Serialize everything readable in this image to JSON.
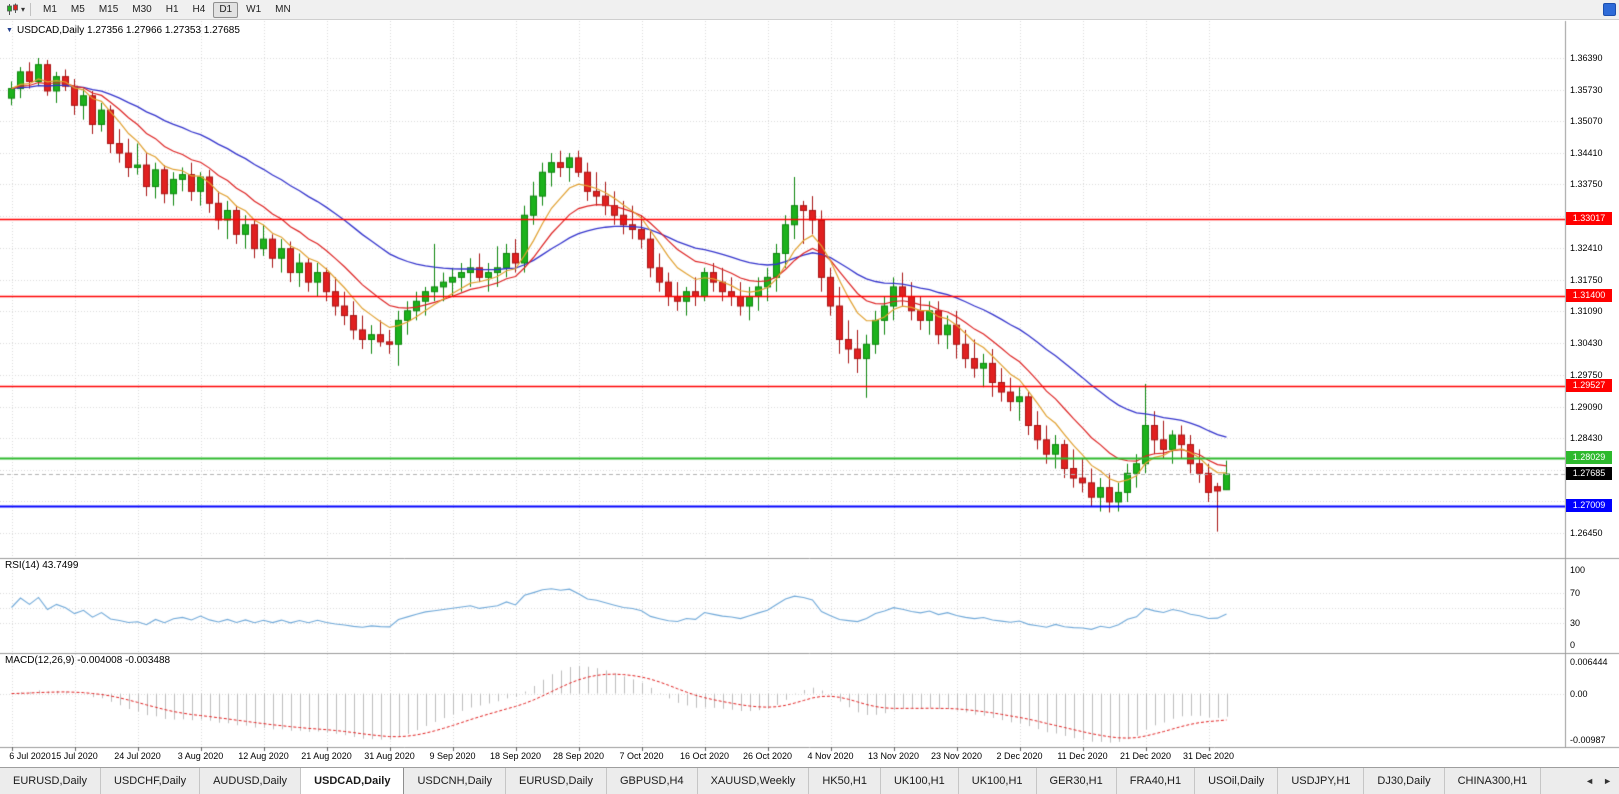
{
  "toolbar": {
    "timeframes": [
      "M1",
      "M5",
      "M15",
      "M30",
      "H1",
      "H4",
      "D1",
      "W1",
      "MN"
    ],
    "active_timeframe": "D1"
  },
  "panels": {
    "main_label": "USDCAD,Daily 1.27356 1.27966 1.27353 1.27685",
    "rsi_label": "RSI(14) 43.7499",
    "macd_label": "MACD(12,26,9) -0.004008 -0.003488"
  },
  "tabbar": {
    "tabs": [
      "EURUSD,Daily",
      "USDCHF,Daily",
      "AUDUSD,Daily",
      "USDCAD,Daily",
      "USDCNH,Daily",
      "EURUSD,Daily",
      "GBPUSD,H4",
      "XAUUSD,Weekly",
      "HK50,H1",
      "UK100,H1",
      "UK100,H1",
      "GER30,H1",
      "FRA40,H1",
      "USOil,Daily",
      "USDJPY,H1",
      "DJ30,Daily",
      "CHINA300,H1"
    ],
    "active_index": 3,
    "scroll_left_arrow": "◄",
    "scroll_right_arrow": "►"
  },
  "chart_data": {
    "type": "candlestick",
    "symbol": "USDCAD",
    "timeframe": "Daily",
    "last_quote": {
      "open": 1.27356,
      "high": 1.27966,
      "low": 1.27353,
      "close": 1.27685
    },
    "date_step": 7,
    "date_labels": [
      "6 Jul 2020",
      "15 Jul 2020",
      "24 Jul 2020",
      "3 Aug 2020",
      "12 Aug 2020",
      "21 Aug 2020",
      "31 Aug 2020",
      "9 Sep 2020",
      "18 Sep 2020",
      "28 Sep 2020",
      "7 Oct 2020",
      "16 Oct 2020",
      "26 Oct 2020",
      "4 Nov 2020",
      "13 Nov 2020",
      "23 Nov 2020",
      "2 Dec 2020",
      "11 Dec 2020",
      "21 Dec 2020",
      "31 Dec 2020"
    ],
    "price_axis_labels": [
      {
        "text": "1.36390",
        "value": 1.3639
      },
      {
        "text": "1.35730",
        "value": 1.3573
      },
      {
        "text": "1.35070",
        "value": 1.3507
      },
      {
        "text": "1.34410",
        "value": 1.3441
      },
      {
        "text": "1.33750",
        "value": 1.3375
      },
      {
        "text": "1.32410",
        "value": 1.3241
      },
      {
        "text": "1.31750",
        "value": 1.3175
      },
      {
        "text": "1.31090",
        "value": 1.3109
      },
      {
        "text": "1.30430",
        "value": 1.3043
      },
      {
        "text": "1.29750",
        "value": 1.2975
      },
      {
        "text": "1.29090",
        "value": 1.2909
      },
      {
        "text": "1.28430",
        "value": 1.2843
      },
      {
        "text": "1.26450",
        "value": 1.2645
      }
    ],
    "price_grid_values": [
      1.3639,
      1.3573,
      1.3507,
      1.3441,
      1.3375,
      1.3309,
      1.3241,
      1.3175,
      1.3109,
      1.3043,
      1.2975,
      1.2909,
      1.2843,
      1.2777,
      1.2711,
      1.2645
    ],
    "levels": [
      {
        "price": 1.33017,
        "label": "1.33017",
        "color": "#ff0000",
        "width": 1.4
      },
      {
        "price": 1.314,
        "label": "1.31400",
        "color": "#ff0000",
        "width": 1.4
      },
      {
        "price": 1.29527,
        "label": "1.29527",
        "color": "#ff0000",
        "width": 1.4
      },
      {
        "price": 1.28029,
        "label": "1.28029",
        "color": "#2db92d",
        "width": 1.8
      },
      {
        "price": 1.27009,
        "label": "1.27009",
        "color": "#0000ff",
        "width": 2
      }
    ],
    "current_price": {
      "value": 1.27685,
      "label": "1.27685",
      "badge_color": "#000000",
      "line_color": "#b0b0b0"
    },
    "rsi": {
      "value_text": "43.7499",
      "axis_labels": [
        {
          "text": "100",
          "value": 100
        },
        {
          "text": "70",
          "value": 70
        },
        {
          "text": "30",
          "value": 30
        },
        {
          "text": "0",
          "value": 0
        }
      ],
      "level_lines": [
        70,
        50,
        30
      ],
      "line_color": "#6fa8d8"
    },
    "macd": {
      "value_text": "-0.004008",
      "signal_text": "-0.003488",
      "axis_labels": [
        {
          "text": "0.006444",
          "value": 0.006444
        },
        {
          "text": "0.00",
          "value": 0
        },
        {
          "text": "-0.00987",
          "value": -0.00987
        }
      ],
      "histogram_color": "#bdbdbd",
      "signal_color": "#e02020"
    },
    "style": {
      "up_color": "#1cb21c",
      "up_border": "#0d860d",
      "down_color": "#e02020",
      "down_border": "#a81414",
      "ma_fast": "#e0a030",
      "ma_mid": "#dd2222",
      "ma_slow": "#3333cc",
      "grid_color": "#d9d9d9",
      "separator_color": "#9a9a9a"
    },
    "candles_ohlc": [
      [
        1.3555,
        1.359,
        1.354,
        1.3575
      ],
      [
        1.3575,
        1.362,
        1.3555,
        1.361
      ],
      [
        1.361,
        1.363,
        1.3575,
        1.359
      ],
      [
        1.359,
        1.3639,
        1.358,
        1.3625
      ],
      [
        1.3625,
        1.3635,
        1.356,
        1.357
      ],
      [
        1.357,
        1.361,
        1.3545,
        1.36
      ],
      [
        1.36,
        1.3615,
        1.357,
        1.358
      ],
      [
        1.358,
        1.3595,
        1.352,
        1.354
      ],
      [
        1.354,
        1.3575,
        1.351,
        1.356
      ],
      [
        1.356,
        1.357,
        1.348,
        1.35
      ],
      [
        1.35,
        1.3545,
        1.3485,
        1.353
      ],
      [
        1.353,
        1.354,
        1.344,
        1.346
      ],
      [
        1.346,
        1.349,
        1.342,
        1.344
      ],
      [
        1.344,
        1.347,
        1.339,
        1.341
      ],
      [
        1.341,
        1.346,
        1.3395,
        1.3415
      ],
      [
        1.3415,
        1.344,
        1.335,
        1.337
      ],
      [
        1.337,
        1.342,
        1.3345,
        1.3405
      ],
      [
        1.3405,
        1.3415,
        1.3335,
        1.3355
      ],
      [
        1.3355,
        1.34,
        1.333,
        1.3385
      ],
      [
        1.3385,
        1.341,
        1.336,
        1.3395
      ],
      [
        1.3395,
        1.342,
        1.334,
        1.336
      ],
      [
        1.336,
        1.34,
        1.333,
        1.339
      ],
      [
        1.339,
        1.3405,
        1.3315,
        1.3335
      ],
      [
        1.3335,
        1.336,
        1.328,
        1.33
      ],
      [
        1.33,
        1.334,
        1.326,
        1.332
      ],
      [
        1.332,
        1.333,
        1.325,
        1.327
      ],
      [
        1.327,
        1.331,
        1.324,
        1.329
      ],
      [
        1.329,
        1.33,
        1.322,
        1.324
      ],
      [
        1.324,
        1.329,
        1.3225,
        1.326
      ],
      [
        1.326,
        1.327,
        1.32,
        1.322
      ],
      [
        1.322,
        1.326,
        1.319,
        1.324
      ],
      [
        1.324,
        1.3255,
        1.317,
        1.319
      ],
      [
        1.319,
        1.323,
        1.316,
        1.321
      ],
      [
        1.321,
        1.322,
        1.315,
        1.317
      ],
      [
        1.317,
        1.321,
        1.314,
        1.319
      ],
      [
        1.319,
        1.32,
        1.313,
        1.315
      ],
      [
        1.315,
        1.318,
        1.31,
        1.312
      ],
      [
        1.312,
        1.315,
        1.308,
        1.31
      ],
      [
        1.31,
        1.313,
        1.305,
        1.307
      ],
      [
        1.307,
        1.31,
        1.303,
        1.305
      ],
      [
        1.305,
        1.308,
        1.302,
        1.306
      ],
      [
        1.306,
        1.309,
        1.3035,
        1.3045
      ],
      [
        1.3045,
        1.307,
        1.302,
        1.304
      ],
      [
        1.304,
        1.311,
        1.2995,
        1.309
      ],
      [
        1.309,
        1.313,
        1.306,
        1.311
      ],
      [
        1.311,
        1.315,
        1.309,
        1.313
      ],
      [
        1.313,
        1.316,
        1.31,
        1.315
      ],
      [
        1.315,
        1.325,
        1.313,
        1.316
      ],
      [
        1.316,
        1.319,
        1.313,
        1.317
      ],
      [
        1.317,
        1.32,
        1.314,
        1.318
      ],
      [
        1.318,
        1.321,
        1.315,
        1.319
      ],
      [
        1.319,
        1.322,
        1.316,
        1.32
      ],
      [
        1.32,
        1.323,
        1.317,
        1.318
      ],
      [
        1.318,
        1.321,
        1.315,
        1.319
      ],
      [
        1.319,
        1.3245,
        1.316,
        1.32
      ],
      [
        1.32,
        1.325,
        1.318,
        1.323
      ],
      [
        1.323,
        1.326,
        1.319,
        1.321
      ],
      [
        1.321,
        1.333,
        1.319,
        1.331
      ],
      [
        1.331,
        1.338,
        1.329,
        1.335
      ],
      [
        1.335,
        1.342,
        1.333,
        1.34
      ],
      [
        1.34,
        1.344,
        1.337,
        1.342
      ],
      [
        1.342,
        1.3445,
        1.339,
        1.341
      ],
      [
        1.341,
        1.344,
        1.338,
        1.343
      ],
      [
        1.343,
        1.3445,
        1.339,
        1.34
      ],
      [
        1.34,
        1.342,
        1.334,
        1.336
      ],
      [
        1.336,
        1.34,
        1.333,
        1.335
      ],
      [
        1.335,
        1.338,
        1.331,
        1.333
      ],
      [
        1.333,
        1.336,
        1.329,
        1.331
      ],
      [
        1.331,
        1.334,
        1.327,
        1.329
      ],
      [
        1.329,
        1.333,
        1.326,
        1.328
      ],
      [
        1.328,
        1.331,
        1.324,
        1.326
      ],
      [
        1.326,
        1.328,
        1.318,
        1.32
      ],
      [
        1.32,
        1.323,
        1.315,
        1.317
      ],
      [
        1.317,
        1.319,
        1.312,
        1.314
      ],
      [
        1.314,
        1.317,
        1.311,
        1.313
      ],
      [
        1.313,
        1.316,
        1.31,
        1.315
      ],
      [
        1.315,
        1.318,
        1.312,
        1.314
      ],
      [
        1.314,
        1.32,
        1.313,
        1.319
      ],
      [
        1.319,
        1.321,
        1.315,
        1.317
      ],
      [
        1.317,
        1.32,
        1.313,
        1.315
      ],
      [
        1.315,
        1.318,
        1.312,
        1.314
      ],
      [
        1.314,
        1.317,
        1.31,
        1.312
      ],
      [
        1.312,
        1.316,
        1.309,
        1.314
      ],
      [
        1.314,
        1.318,
        1.311,
        1.316
      ],
      [
        1.316,
        1.32,
        1.313,
        1.318
      ],
      [
        1.318,
        1.325,
        1.315,
        1.323
      ],
      [
        1.323,
        1.331,
        1.32,
        1.329
      ],
      [
        1.329,
        1.339,
        1.326,
        1.333
      ],
      [
        1.333,
        1.334,
        1.325,
        1.332
      ],
      [
        1.332,
        1.335,
        1.327,
        1.33
      ],
      [
        1.33,
        1.332,
        1.315,
        1.318
      ],
      [
        1.318,
        1.32,
        1.31,
        1.312
      ],
      [
        1.312,
        1.316,
        1.302,
        1.305
      ],
      [
        1.305,
        1.309,
        1.3,
        1.303
      ],
      [
        1.303,
        1.307,
        1.298,
        1.301
      ],
      [
        1.301,
        1.306,
        1.2928,
        1.304
      ],
      [
        1.304,
        1.311,
        1.302,
        1.309
      ],
      [
        1.309,
        1.314,
        1.306,
        1.312
      ],
      [
        1.312,
        1.318,
        1.309,
        1.316
      ],
      [
        1.316,
        1.319,
        1.312,
        1.314
      ],
      [
        1.314,
        1.317,
        1.309,
        1.311
      ],
      [
        1.311,
        1.314,
        1.307,
        1.309
      ],
      [
        1.309,
        1.313,
        1.306,
        1.311
      ],
      [
        1.311,
        1.313,
        1.304,
        1.306
      ],
      [
        1.306,
        1.31,
        1.303,
        1.308
      ],
      [
        1.308,
        1.311,
        1.301,
        1.304
      ],
      [
        1.304,
        1.307,
        1.299,
        1.301
      ],
      [
        1.301,
        1.305,
        1.297,
        1.299
      ],
      [
        1.299,
        1.302,
        1.295,
        1.3
      ],
      [
        1.3,
        1.303,
        1.293,
        1.296
      ],
      [
        1.296,
        1.299,
        1.292,
        1.294
      ],
      [
        1.294,
        1.297,
        1.29,
        1.292
      ],
      [
        1.292,
        1.295,
        1.288,
        1.293
      ],
      [
        1.293,
        1.294,
        1.285,
        1.287
      ],
      [
        1.287,
        1.29,
        1.282,
        1.284
      ],
      [
        1.284,
        1.287,
        1.279,
        1.281
      ],
      [
        1.281,
        1.285,
        1.278,
        1.283
      ],
      [
        1.283,
        1.284,
        1.276,
        1.278
      ],
      [
        1.278,
        1.282,
        1.274,
        1.276
      ],
      [
        1.276,
        1.28,
        1.273,
        1.275
      ],
      [
        1.275,
        1.278,
        1.27,
        1.272
      ],
      [
        1.272,
        1.276,
        1.269,
        1.274
      ],
      [
        1.274,
        1.277,
        1.2688,
        1.271
      ],
      [
        1.271,
        1.275,
        1.269,
        1.273
      ],
      [
        1.273,
        1.279,
        1.271,
        1.277
      ],
      [
        1.277,
        1.281,
        1.274,
        1.279
      ],
      [
        1.279,
        1.2957,
        1.277,
        1.287
      ],
      [
        1.287,
        1.29,
        1.281,
        1.284
      ],
      [
        1.284,
        1.288,
        1.28,
        1.282
      ],
      [
        1.282,
        1.286,
        1.279,
        1.285
      ],
      [
        1.285,
        1.287,
        1.28,
        1.283
      ],
      [
        1.283,
        1.285,
        1.277,
        1.279
      ],
      [
        1.279,
        1.282,
        1.275,
        1.277
      ],
      [
        1.277,
        1.279,
        1.271,
        1.273
      ],
      [
        1.2742,
        1.275,
        1.2648,
        1.2733
      ],
      [
        1.27356,
        1.27966,
        1.27353,
        1.27685
      ]
    ]
  }
}
